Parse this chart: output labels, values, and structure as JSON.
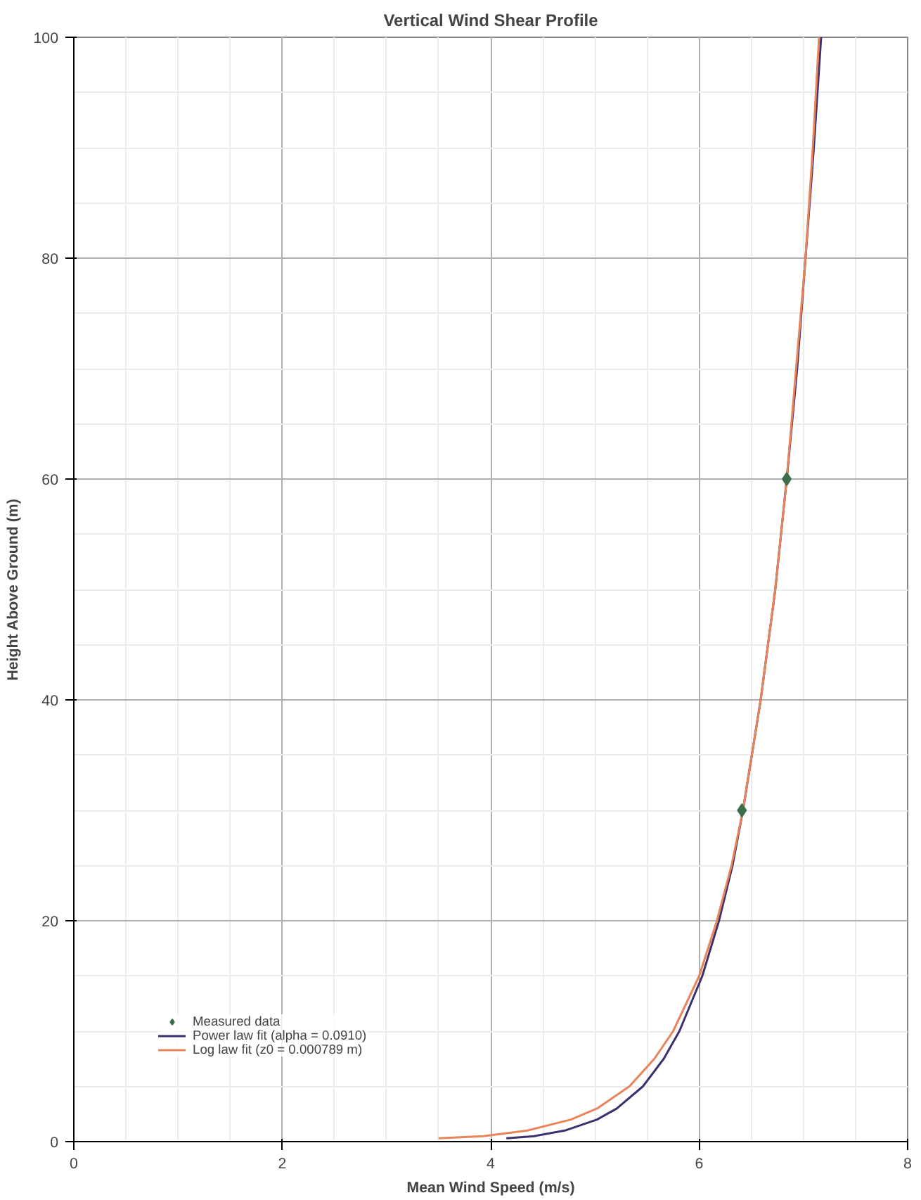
{
  "chart_data": {
    "type": "line",
    "title": "Vertical Wind Shear Profile",
    "xlabel": "Mean Wind Speed (m/s)",
    "ylabel": "Height Above Ground (m)",
    "xlim": [
      0,
      8
    ],
    "xticks": [
      0,
      2,
      4,
      6,
      8
    ],
    "ylim": [
      0,
      100
    ],
    "yticks": [
      0,
      20,
      40,
      60,
      80,
      100
    ],
    "grid": true,
    "legend": "bottom left",
    "series": [
      {
        "name": "Measured data",
        "type": "scatter",
        "marker": "diamond",
        "color": "#3c6e4a",
        "x": [
          6.41,
          6.84
        ],
        "values": [
          30,
          60
        ]
      },
      {
        "name": "Power law fit (alpha = 0.0910)",
        "color": "#3b2f6e",
        "x": [
          4.15,
          4.42,
          4.71,
          5.02,
          5.21,
          5.46,
          5.66,
          5.81,
          6.03,
          6.19,
          6.32,
          6.42,
          6.59,
          6.73,
          6.84,
          6.94,
          7.02,
          7.1,
          7.17
        ],
        "values": [
          0.3,
          0.5,
          1,
          2,
          3,
          5,
          7.5,
          10,
          15,
          20,
          25,
          30,
          40,
          50,
          60,
          70,
          80,
          90,
          100
        ]
      },
      {
        "name": "Log law fit (z0 = 0.000789 m)",
        "color": "#e8845a",
        "x": [
          3.5,
          3.93,
          4.35,
          4.77,
          5.02,
          5.33,
          5.57,
          5.75,
          6.0,
          6.17,
          6.31,
          6.42,
          6.59,
          6.73,
          6.84,
          6.93,
          7.02,
          7.09,
          7.15
        ],
        "values": [
          0.3,
          0.5,
          1,
          2,
          3,
          5,
          7.5,
          10,
          15,
          20,
          25,
          30,
          40,
          50,
          60,
          70,
          80,
          90,
          100
        ]
      }
    ]
  }
}
